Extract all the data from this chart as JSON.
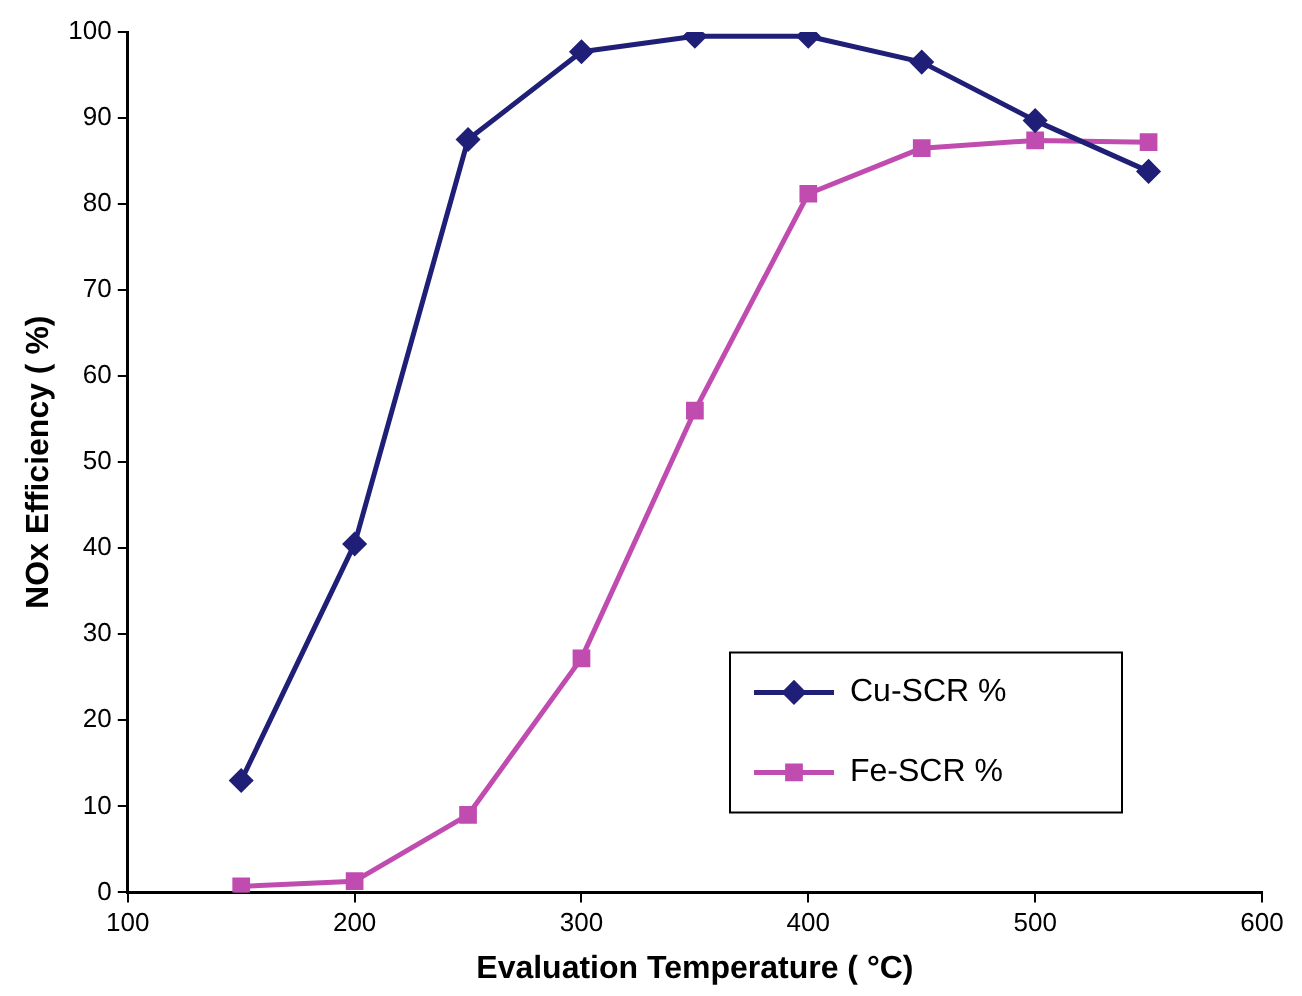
{
  "chart_data": {
    "type": "line",
    "xlabel": "Evaluation Temperature ( °C)",
    "ylabel": "NOx Efficiency ( %)",
    "x": [
      150,
      200,
      250,
      300,
      350,
      400,
      450,
      500,
      550
    ],
    "series": [
      {
        "name": "Cu-SCR %",
        "color": "#1f1f78",
        "marker": "diamond",
        "values": [
          13,
          40.5,
          87.5,
          97.7,
          99.5,
          99.5,
          96.5,
          89.7,
          83.8
        ]
      },
      {
        "name": "Fe-SCR %",
        "color": "#c04cb0",
        "marker": "square",
        "values": [
          0.7,
          1.3,
          9,
          27.2,
          56,
          81.2,
          86.5,
          87.4,
          87.2
        ]
      }
    ],
    "xlim": [
      100,
      600
    ],
    "xticks": [
      100,
      200,
      300,
      400,
      500,
      600
    ],
    "ylim": [
      0,
      100
    ],
    "yticks": [
      0,
      10,
      20,
      30,
      40,
      50,
      60,
      70,
      80,
      90,
      100
    ],
    "grid": false,
    "legend": "bottom right",
    "line_style": "solid"
  }
}
